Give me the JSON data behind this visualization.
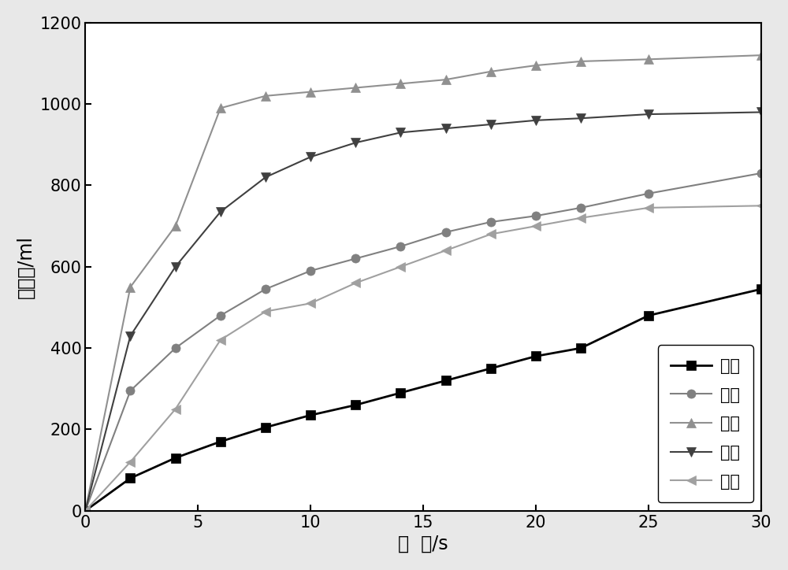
{
  "series": {
    "对照": {
      "color": "#000000",
      "marker": "s",
      "marker_color": "#000000",
      "line_style": "-",
      "line_width": 2.0,
      "x": [
        0,
        2,
        4,
        6,
        8,
        10,
        12,
        14,
        16,
        18,
        20,
        22,
        25,
        30
      ],
      "y": [
        0,
        80,
        130,
        170,
        205,
        235,
        260,
        290,
        320,
        350,
        380,
        400,
        480,
        545
      ]
    },
    "例一": {
      "color": "#808080",
      "marker": "o",
      "marker_color": "#808080",
      "line_style": "-",
      "line_width": 1.5,
      "x": [
        0,
        2,
        4,
        6,
        8,
        10,
        12,
        14,
        16,
        18,
        20,
        22,
        25,
        30
      ],
      "y": [
        0,
        295,
        400,
        480,
        545,
        590,
        620,
        650,
        685,
        710,
        725,
        745,
        780,
        830
      ]
    },
    "例二": {
      "color": "#909090",
      "marker": "^",
      "marker_color": "#909090",
      "line_style": "-",
      "line_width": 1.5,
      "x": [
        0,
        2,
        4,
        6,
        8,
        10,
        12,
        14,
        16,
        18,
        20,
        22,
        25,
        30
      ],
      "y": [
        0,
        550,
        700,
        990,
        1020,
        1030,
        1040,
        1050,
        1060,
        1080,
        1095,
        1105,
        1110,
        1120
      ]
    },
    "例三": {
      "color": "#404040",
      "marker": "v",
      "marker_color": "#404040",
      "line_style": "-",
      "line_width": 1.5,
      "x": [
        0,
        2,
        4,
        6,
        8,
        10,
        12,
        14,
        16,
        18,
        20,
        22,
        25,
        30
      ],
      "y": [
        0,
        430,
        600,
        735,
        820,
        870,
        905,
        930,
        940,
        950,
        960,
        965,
        975,
        980
      ]
    },
    "例四": {
      "color": "#a0a0a0",
      "marker": "<",
      "marker_color": "#a0a0a0",
      "line_style": "-",
      "line_width": 1.5,
      "x": [
        0,
        2,
        4,
        6,
        8,
        10,
        12,
        14,
        16,
        18,
        20,
        22,
        25,
        30
      ],
      "y": [
        0,
        120,
        250,
        420,
        490,
        510,
        560,
        600,
        640,
        680,
        700,
        720,
        745,
        750
      ]
    }
  },
  "xlabel": "时  间/s",
  "ylabel": "产氢量/ml",
  "xlim": [
    0,
    30
  ],
  "ylim": [
    0,
    1200
  ],
  "xticks": [
    0,
    5,
    10,
    15,
    20,
    25,
    30
  ],
  "yticks": [
    0,
    200,
    400,
    600,
    800,
    1000,
    1200
  ],
  "legend_order": [
    "对照",
    "例一",
    "例二",
    "例三",
    "例四"
  ],
  "legend_loc": "lower right",
  "plot_bg_color": "#ffffff",
  "figure_bg_color": "#e8e8e8",
  "font_size": 15,
  "label_font_size": 17,
  "tick_font_size": 15,
  "marker_size": 8
}
